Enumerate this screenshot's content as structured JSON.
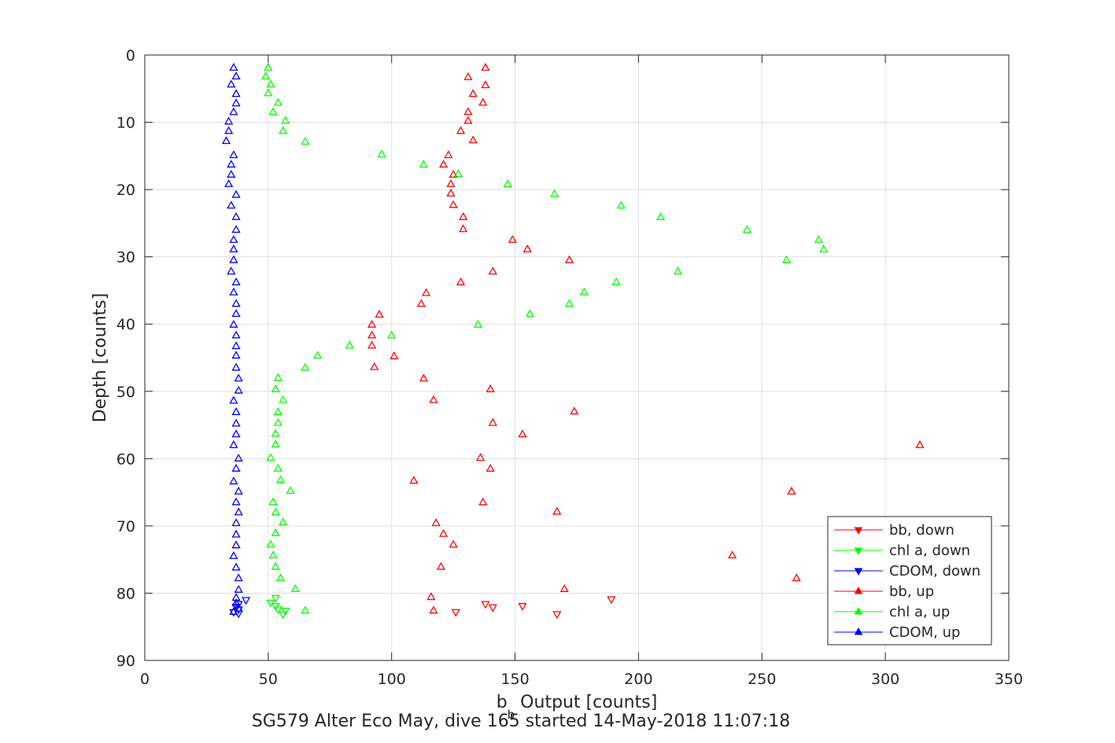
{
  "chart_data": {
    "type": "scatter",
    "xlabel_main": "b",
    "xlabel_sub": "b",
    "xlabel_rest": " Output [counts]",
    "ylabel": "Depth [counts]",
    "caption": "SG579 Alter Eco May, dive 165 started 14-May-2018 11:07:18",
    "xlim": [
      0,
      350
    ],
    "ylim": [
      0,
      90
    ],
    "y_reversed": true,
    "grid": true,
    "legend_position": "bottom-right",
    "xticks": [
      0,
      50,
      100,
      150,
      200,
      250,
      300,
      350
    ],
    "yticks": [
      0,
      10,
      20,
      30,
      40,
      50,
      60,
      70,
      80,
      90
    ],
    "series": [
      {
        "name": "bb, down",
        "color": "#ff0000",
        "marker": "down",
        "points": [
          [
            138,
            81.6
          ],
          [
            141,
            82.1
          ],
          [
            153,
            81.9
          ],
          [
            126,
            82.8
          ],
          [
            167,
            83.1
          ],
          [
            189,
            80.9
          ]
        ]
      },
      {
        "name": "chl a, down",
        "color": "#00ff00",
        "marker": "down",
        "points": [
          [
            53,
            80.7
          ],
          [
            51,
            81.4
          ],
          [
            53,
            81.9
          ],
          [
            54,
            82.4
          ],
          [
            57,
            82.6
          ],
          [
            56,
            83.1
          ]
        ]
      },
      {
        "name": "CDOM, down",
        "color": "#0000ff",
        "marker": "down",
        "points": [
          [
            41,
            81
          ],
          [
            38,
            81.6
          ],
          [
            37,
            82
          ],
          [
            38,
            82.4
          ],
          [
            36,
            82.8
          ],
          [
            38,
            83
          ]
        ]
      },
      {
        "name": "bb, up",
        "color": "#ff0000",
        "marker": "up",
        "points": [
          [
            138,
            1.9
          ],
          [
            131,
            3.3
          ],
          [
            138,
            4.5
          ],
          [
            133,
            5.8
          ],
          [
            137,
            7.1
          ],
          [
            131,
            8.5
          ],
          [
            131,
            9.8
          ],
          [
            128,
            11.3
          ],
          [
            133,
            12.7
          ],
          [
            123,
            14.9
          ],
          [
            121,
            16.3
          ],
          [
            125,
            17.8
          ],
          [
            124,
            19.2
          ],
          [
            124,
            20.6
          ],
          [
            125,
            22.3
          ],
          [
            129,
            24.1
          ],
          [
            129,
            25.9
          ],
          [
            149,
            27.5
          ],
          [
            155,
            28.9
          ],
          [
            172,
            30.5
          ],
          [
            141,
            32.2
          ],
          [
            128,
            33.8
          ],
          [
            114,
            35.4
          ],
          [
            112,
            37
          ],
          [
            95,
            38.6
          ],
          [
            92,
            40.1
          ],
          [
            92,
            41.7
          ],
          [
            92,
            43.2
          ],
          [
            101,
            44.8
          ],
          [
            93,
            46.4
          ],
          [
            113,
            48.1
          ],
          [
            140,
            49.7
          ],
          [
            117,
            51.3
          ],
          [
            174,
            53
          ],
          [
            141,
            54.7
          ],
          [
            153,
            56.4
          ],
          [
            314,
            58
          ],
          [
            136,
            59.9
          ],
          [
            140,
            61.5
          ],
          [
            109,
            63.3
          ],
          [
            262,
            64.9
          ],
          [
            137,
            66.5
          ],
          [
            167,
            67.9
          ],
          [
            118,
            69.6
          ],
          [
            121,
            71.2
          ],
          [
            125,
            72.8
          ],
          [
            238,
            74.4
          ],
          [
            120,
            76.1
          ],
          [
            264,
            77.8
          ],
          [
            170,
            79.4
          ],
          [
            116,
            80.6
          ],
          [
            117,
            82.6
          ]
        ]
      },
      {
        "name": "chl a, up",
        "color": "#00ff00",
        "marker": "up",
        "points": [
          [
            50,
            1.9
          ],
          [
            49,
            3.2
          ],
          [
            51,
            4.4
          ],
          [
            50,
            5.7
          ],
          [
            54,
            7.1
          ],
          [
            52,
            8.5
          ],
          [
            57,
            9.8
          ],
          [
            56,
            11.3
          ],
          [
            65,
            12.9
          ],
          [
            96,
            14.8
          ],
          [
            113,
            16.3
          ],
          [
            127,
            17.7
          ],
          [
            147,
            19.2
          ],
          [
            166,
            20.7
          ],
          [
            193,
            22.4
          ],
          [
            209,
            24.1
          ],
          [
            244,
            26
          ],
          [
            273,
            27.5
          ],
          [
            275,
            28.9
          ],
          [
            260,
            30.5
          ],
          [
            216,
            32.2
          ],
          [
            191,
            33.8
          ],
          [
            178,
            35.3
          ],
          [
            172,
            37
          ],
          [
            156,
            38.5
          ],
          [
            135,
            40.1
          ],
          [
            100,
            41.7
          ],
          [
            83,
            43.2
          ],
          [
            70,
            44.7
          ],
          [
            65,
            46.5
          ],
          [
            54,
            48
          ],
          [
            53,
            49.7
          ],
          [
            56,
            51.3
          ],
          [
            54,
            53.1
          ],
          [
            54,
            54.7
          ],
          [
            53,
            56.3
          ],
          [
            53,
            57.9
          ],
          [
            51,
            59.9
          ],
          [
            54,
            61.5
          ],
          [
            55,
            63.2
          ],
          [
            59,
            64.8
          ],
          [
            52,
            66.5
          ],
          [
            53,
            68
          ],
          [
            56,
            69.5
          ],
          [
            53,
            71.1
          ],
          [
            51,
            72.8
          ],
          [
            52,
            74.4
          ],
          [
            53,
            76.1
          ],
          [
            55,
            77.8
          ],
          [
            61,
            79.4
          ],
          [
            65,
            82.6
          ]
        ]
      },
      {
        "name": "CDOM, up",
        "color": "#0000ff",
        "marker": "up",
        "points": [
          [
            36,
            1.9
          ],
          [
            37,
            3.2
          ],
          [
            35,
            4.4
          ],
          [
            37,
            5.8
          ],
          [
            37,
            7.2
          ],
          [
            36,
            8.5
          ],
          [
            34,
            9.9
          ],
          [
            34,
            11.3
          ],
          [
            33,
            12.8
          ],
          [
            36,
            14.9
          ],
          [
            35,
            16.3
          ],
          [
            35,
            17.8
          ],
          [
            34,
            19.2
          ],
          [
            37,
            20.8
          ],
          [
            35,
            22.4
          ],
          [
            37,
            24.1
          ],
          [
            37,
            26
          ],
          [
            36,
            27.5
          ],
          [
            36,
            28.9
          ],
          [
            36,
            30.5
          ],
          [
            35,
            32.2
          ],
          [
            37,
            33.8
          ],
          [
            36,
            35.3
          ],
          [
            37,
            37
          ],
          [
            37,
            38.5
          ],
          [
            36,
            40.1
          ],
          [
            37,
            41.7
          ],
          [
            37,
            43.3
          ],
          [
            37,
            44.7
          ],
          [
            37,
            46.5
          ],
          [
            38,
            48.1
          ],
          [
            38,
            49.9
          ],
          [
            36,
            51.4
          ],
          [
            37,
            53.1
          ],
          [
            37,
            54.8
          ],
          [
            37,
            56.4
          ],
          [
            36,
            58
          ],
          [
            38,
            60
          ],
          [
            37,
            61.5
          ],
          [
            36,
            63.4
          ],
          [
            38,
            64.9
          ],
          [
            37,
            66.5
          ],
          [
            38,
            68
          ],
          [
            37,
            69.6
          ],
          [
            37,
            71.3
          ],
          [
            37,
            72.9
          ],
          [
            36,
            74.5
          ],
          [
            37,
            76.2
          ],
          [
            38,
            77.8
          ],
          [
            38,
            79.5
          ],
          [
            37,
            80.7
          ],
          [
            37,
            81.5
          ],
          [
            38,
            82.3
          ],
          [
            36,
            82.8
          ]
        ]
      }
    ]
  }
}
